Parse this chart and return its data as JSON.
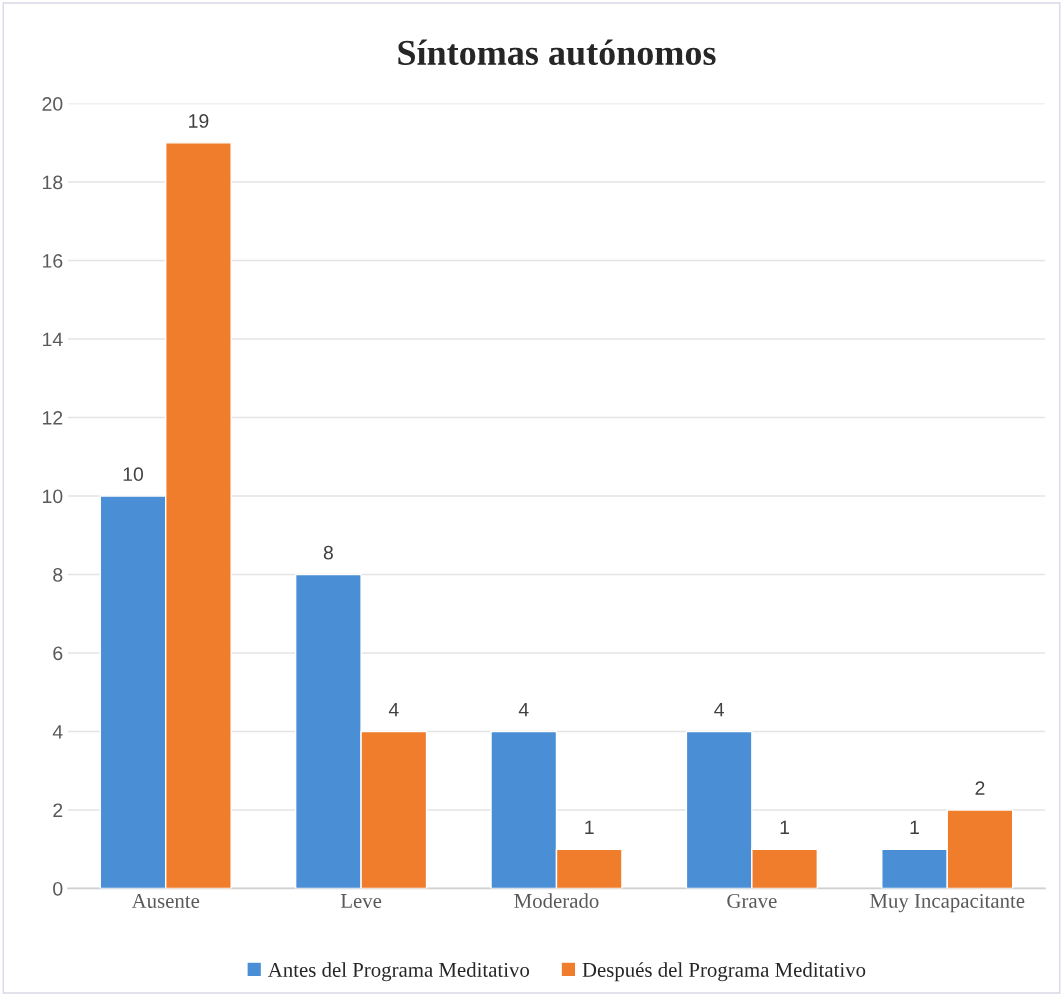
{
  "chart_data": {
    "type": "bar",
    "title": "Síntomas autónomos",
    "categories": [
      "Ausente",
      "Leve",
      "Moderado",
      "Grave",
      "Muy Incapacitante"
    ],
    "series": [
      {
        "name": "Antes del Programa Meditativo",
        "color": "#4a8fd6",
        "values": [
          10,
          8,
          4,
          4,
          1
        ]
      },
      {
        "name": "Después del Programa Meditativo",
        "color": "#f07d2b",
        "values": [
          19,
          4,
          1,
          1,
          2
        ]
      }
    ],
    "ylim": [
      0,
      20
    ],
    "yticks": [
      0,
      2,
      4,
      6,
      8,
      10,
      12,
      14,
      16,
      18,
      20
    ],
    "grid": "y",
    "legend": "bottom",
    "data_labels": true
  }
}
